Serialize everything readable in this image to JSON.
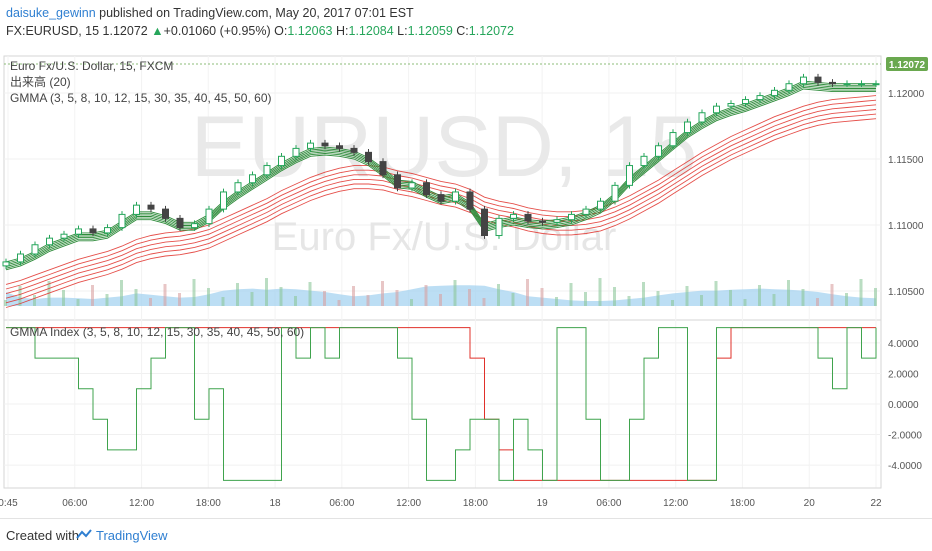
{
  "header": {
    "author": "daisuke_gewinn",
    "published": "published on TradingView.com, May 20, 2017 07:01 EST",
    "symbol_line": "FX:EURUSD, 15 1.12072",
    "change": "+0.01060 (+0.95%)",
    "o_label": "O:",
    "o_value": "1.12063",
    "h_label": "H:",
    "h_value": "1.12084",
    "l_label": "L:",
    "l_value": "1.12059",
    "c_label": "C:",
    "c_value": "1.12072"
  },
  "legend": {
    "main": "Euro Fx/U.S. Dollar, 15, FXCM",
    "volume": "出来高 (20)",
    "gmma": "GMMA (3, 5, 8, 10, 12, 15, 30, 35, 40, 45, 50, 60)",
    "index": "GMMA Index (3, 5, 8, 10, 12, 15, 30, 35, 40, 45, 50, 60)"
  },
  "watermark": {
    "big": "EURUSD, 15",
    "small": "Euro Fx/U.S. Dollar"
  },
  "price_badge": "1.12072",
  "colors": {
    "up": "#26a65b",
    "down": "#444444",
    "short_ema": "#2e8b3a",
    "long_ema": "#e0302a",
    "volume_area": "#9fd0ef",
    "index_green": "#3fa34d",
    "index_red": "#e0302a",
    "badge": "#6aa84f"
  },
  "footer": {
    "created": "Created with",
    "brand": "TradingView"
  },
  "chart_data": [
    {
      "type": "line",
      "name_key": "price",
      "y_axis_ticks": [
        "1.12000",
        "1.11500",
        "1.11000",
        "1.10500"
      ],
      "y_axis_values": [
        1.12,
        1.115,
        1.11,
        1.105
      ],
      "ylim": [
        1.1028,
        1.1228
      ],
      "x_tick_labels": [
        "0:45",
        "06:00",
        "12:00",
        "18:00",
        "18",
        "06:00",
        "12:00",
        "18:00",
        "19",
        "06:00",
        "12:00",
        "18:00",
        "20",
        "22"
      ],
      "x": [
        0,
        1,
        2,
        3,
        4,
        5,
        6,
        7,
        8,
        9,
        10,
        11,
        12,
        13,
        14,
        15,
        16,
        17,
        18,
        19,
        20,
        21,
        22,
        23,
        24,
        25,
        26,
        27,
        28,
        29,
        30,
        31,
        32,
        33,
        34,
        35,
        36,
        37,
        38,
        39,
        40,
        41,
        42,
        43,
        44,
        45,
        46,
        47,
        48,
        49,
        50,
        51,
        52,
        53,
        54,
        55,
        56,
        57,
        58,
        59,
        60
      ],
      "close": [
        1.1072,
        1.1078,
        1.1085,
        1.109,
        1.1093,
        1.1097,
        1.1094,
        1.1098,
        1.1108,
        1.1115,
        1.1112,
        1.1105,
        1.1098,
        1.1101,
        1.1112,
        1.1125,
        1.1132,
        1.1138,
        1.1145,
        1.1152,
        1.1158,
        1.1162,
        1.116,
        1.1158,
        1.1155,
        1.1148,
        1.1138,
        1.1128,
        1.1132,
        1.1123,
        1.1118,
        1.1125,
        1.1112,
        1.1092,
        1.1105,
        1.1108,
        1.1103,
        1.1102,
        1.1104,
        1.1108,
        1.1112,
        1.1118,
        1.113,
        1.1145,
        1.1152,
        1.116,
        1.117,
        1.1178,
        1.1185,
        1.119,
        1.1192,
        1.1195,
        1.1198,
        1.1202,
        1.1207,
        1.1212,
        1.1208,
        1.1207,
        1.1207,
        1.1207,
        1.1207
      ],
      "short_ema": [
        1.1072,
        1.1075,
        1.108,
        1.1086,
        1.109,
        1.1094,
        1.1094,
        1.1096,
        1.1103,
        1.111,
        1.111,
        1.1107,
        1.1102,
        1.1102,
        1.1108,
        1.1118,
        1.1126,
        1.1133,
        1.114,
        1.1147,
        1.1153,
        1.1158,
        1.1159,
        1.1158,
        1.1156,
        1.1151,
        1.1143,
        1.1134,
        1.1133,
        1.1127,
        1.1122,
        1.1124,
        1.1117,
        1.1101,
        1.1104,
        1.1106,
        1.1104,
        1.1103,
        1.1104,
        1.1106,
        1.111,
        1.1115,
        1.1124,
        1.1136,
        1.1145,
        1.1154,
        1.1163,
        1.1172,
        1.1179,
        1.1185,
        1.1189,
        1.1192,
        1.1196,
        1.12,
        1.1204,
        1.1209,
        1.1208,
        1.1207,
        1.1207,
        1.1207,
        1.1207
      ],
      "long_ema": [
        1.1055,
        1.1058,
        1.1062,
        1.1066,
        1.107,
        1.1074,
        1.1077,
        1.108,
        1.1084,
        1.1089,
        1.1092,
        1.1094,
        1.1095,
        1.1097,
        1.11,
        1.1105,
        1.111,
        1.1115,
        1.112,
        1.1126,
        1.1131,
        1.1136,
        1.114,
        1.1143,
        1.1145,
        1.1145,
        1.1144,
        1.1141,
        1.1139,
        1.1136,
        1.1133,
        1.1131,
        1.1127,
        1.1121,
        1.1118,
        1.1116,
        1.1113,
        1.1111,
        1.111,
        1.111,
        1.1111,
        1.1113,
        1.1117,
        1.1122,
        1.1128,
        1.1134,
        1.1141,
        1.1148,
        1.1155,
        1.1161,
        1.1167,
        1.1172,
        1.1177,
        1.1182,
        1.1186,
        1.119,
        1.1193,
        1.1195,
        1.1196,
        1.1197,
        1.1198
      ],
      "volume": [
        0.5,
        0.3,
        0.25,
        0.3,
        0.3,
        0.28,
        0.25,
        0.3,
        0.35,
        0.45,
        0.4,
        0.35,
        0.3,
        0.32,
        0.42,
        0.55,
        0.6,
        0.62,
        0.58,
        0.62,
        0.6,
        0.55,
        0.5,
        0.42,
        0.35,
        0.38,
        0.45,
        0.5,
        0.6,
        0.7,
        0.72,
        0.74,
        0.74,
        0.72,
        0.6,
        0.5,
        0.35,
        0.3,
        0.25,
        0.2,
        0.18,
        0.18,
        0.2,
        0.25,
        0.3,
        0.38,
        0.45,
        0.5,
        0.55,
        0.55,
        0.58,
        0.6,
        0.62,
        0.6,
        0.58,
        0.55,
        0.5,
        0.42,
        0.35,
        0.3,
        0.28
      ]
    },
    {
      "type": "line",
      "name_key": "gmma_index",
      "y_axis_ticks": [
        "4.0000",
        "2.0000",
        "0.0000",
        "-2.0000",
        "-4.0000"
      ],
      "y_axis_values": [
        4,
        2,
        0,
        -2,
        -4
      ],
      "ylim": [
        -5.5,
        5.5
      ],
      "green": [
        5,
        5,
        3,
        3,
        3,
        1,
        -1,
        -3,
        -3,
        1,
        3,
        5,
        5,
        -1,
        1,
        -5,
        -5,
        -5,
        -5,
        5,
        3,
        5,
        3,
        5,
        5,
        5,
        5,
        3,
        -1,
        -5,
        -5,
        -3,
        -1,
        -1,
        -5,
        -1,
        -3,
        -5,
        5,
        5,
        -1,
        -5,
        -5,
        -1,
        3,
        5,
        5,
        -5,
        -5,
        5,
        5,
        5,
        5,
        5,
        5,
        5,
        3,
        1,
        5,
        3,
        5
      ],
      "red": [
        5,
        5,
        5,
        5,
        5,
        5,
        5,
        5,
        5,
        5,
        5,
        5,
        5,
        5,
        5,
        5,
        5,
        5,
        5,
        5,
        5,
        5,
        5,
        5,
        5,
        5,
        5,
        5,
        5,
        5,
        5,
        5,
        3,
        -1,
        -3,
        -5,
        -5,
        -5,
        -5,
        -5,
        -5,
        -5,
        -5,
        -5,
        -5,
        -5,
        -5,
        -5,
        -5,
        3,
        5,
        5,
        5,
        5,
        5,
        5,
        5,
        5,
        5,
        5,
        5
      ]
    }
  ]
}
